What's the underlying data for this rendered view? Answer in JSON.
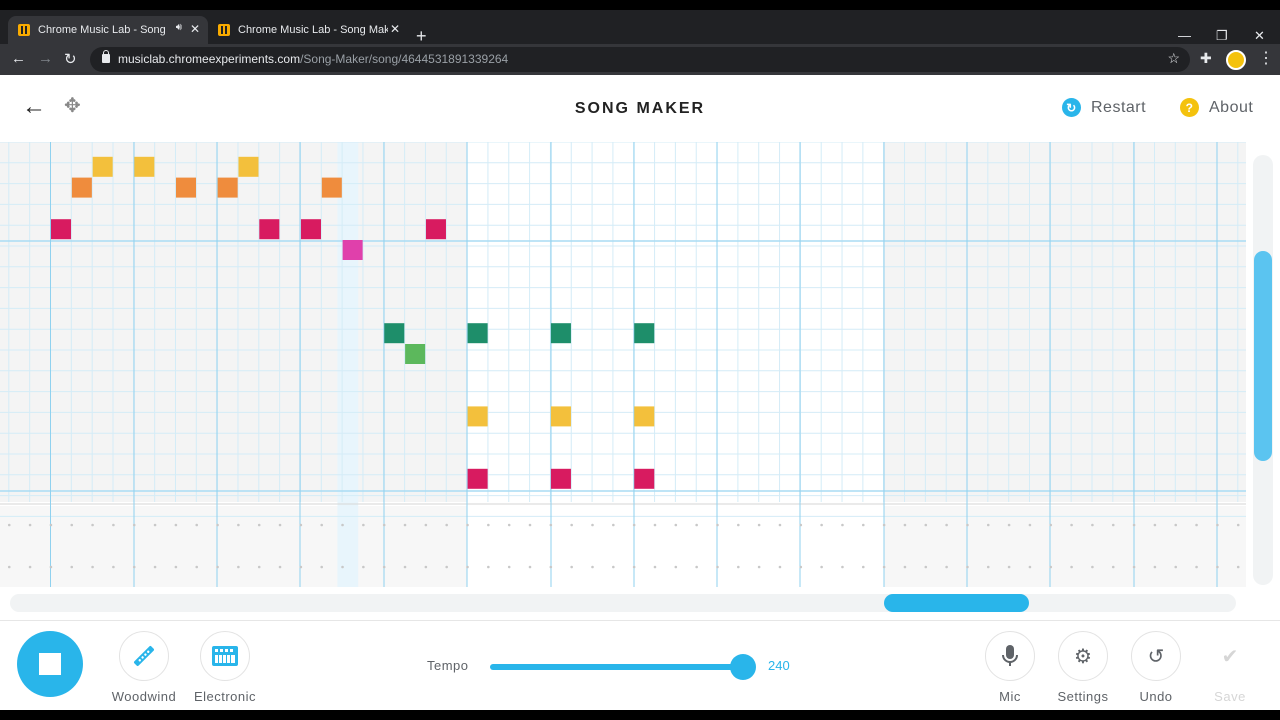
{
  "browser": {
    "tabs": [
      {
        "title": "Chrome Music Lab - Song M",
        "active": true,
        "audio": true
      },
      {
        "title": "Chrome Music Lab - Song Maker",
        "active": false,
        "audio": false
      }
    ],
    "new_tab_icon": "+",
    "window_controls": {
      "minimize": "—",
      "maximize": "❐",
      "close": "✕"
    },
    "nav": {
      "back": "←",
      "forward": "→",
      "reload": "↻"
    },
    "url_host": "musiclab.chromeexperiments.com",
    "url_path": "/Song-Maker/song/4644531891339264",
    "star_icon": "☆",
    "extensions_icon": "✚",
    "menu_icon": "⋮"
  },
  "app": {
    "title": "SONG MAKER",
    "back_icon": "←",
    "move_icon": "✥",
    "restart": {
      "label": "Restart",
      "icon": "↻",
      "color": "#29b5ea"
    },
    "about": {
      "label": "About",
      "icon": "?",
      "color": "#f4c20d"
    }
  },
  "grid": {
    "note_colors": {
      "magenta": "#d81b60",
      "orange": "#ef8c3d",
      "yellow": "#f3c03c",
      "pink": "#e040ab",
      "teal": "#1e8e6a",
      "green": "#5cb85c"
    },
    "melody_notes": [
      {
        "col": 3,
        "row": 1,
        "color": "yellow"
      },
      {
        "col": 5,
        "row": 1,
        "color": "yellow"
      },
      {
        "col": 10,
        "row": 1,
        "color": "yellow"
      },
      {
        "col": 2,
        "row": 2,
        "color": "orange"
      },
      {
        "col": 7,
        "row": 2,
        "color": "orange"
      },
      {
        "col": 9,
        "row": 2,
        "color": "orange"
      },
      {
        "col": 14,
        "row": 2,
        "color": "orange"
      },
      {
        "col": 1,
        "row": 4,
        "color": "magenta"
      },
      {
        "col": 11,
        "row": 4,
        "color": "magenta"
      },
      {
        "col": 13,
        "row": 4,
        "color": "magenta"
      },
      {
        "col": 19,
        "row": 4,
        "color": "magenta"
      },
      {
        "col": 15,
        "row": 5,
        "color": "pink"
      },
      {
        "col": 17,
        "row": 9,
        "color": "teal"
      },
      {
        "col": 21,
        "row": 9,
        "color": "teal"
      },
      {
        "col": 25,
        "row": 9,
        "color": "teal"
      },
      {
        "col": 29,
        "row": 9,
        "color": "teal"
      },
      {
        "col": 18,
        "row": 10,
        "color": "green"
      },
      {
        "col": 21,
        "row": 13,
        "color": "yellow"
      },
      {
        "col": 25,
        "row": 13,
        "color": "yellow"
      },
      {
        "col": 29,
        "row": 13,
        "color": "yellow"
      },
      {
        "col": 21,
        "row": 16,
        "color": "magenta"
      },
      {
        "col": 25,
        "row": 16,
        "color": "magenta"
      },
      {
        "col": 29,
        "row": 16,
        "color": "magenta"
      }
    ],
    "highlight_col": 14.75
  },
  "scroll": {
    "horizontal_position": 0.73,
    "vertical_position": 0.35
  },
  "controls": {
    "play_state": "playing",
    "instruments": [
      {
        "label": "Woodwind",
        "icon": "woodwind-icon"
      },
      {
        "label": "Electronic",
        "icon": "electronic-keyboard-icon"
      }
    ],
    "tempo_label": "Tempo",
    "tempo_value": "240",
    "tempo_fraction": 1.0,
    "mic_label": "Mic",
    "settings_label": "Settings",
    "undo_label": "Undo",
    "save_label": "Save"
  }
}
